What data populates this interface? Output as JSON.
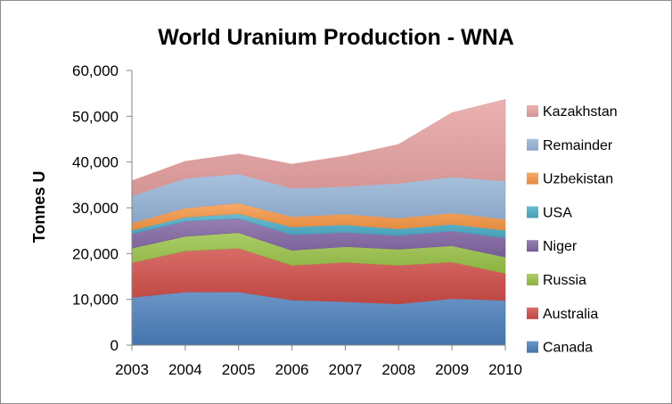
{
  "chart_data": {
    "type": "area",
    "stacked": true,
    "title": "World Uranium Production - WNA",
    "xlabel": "",
    "ylabel": "Tonnes U",
    "x": [
      "2003",
      "2004",
      "2005",
      "2006",
      "2007",
      "2008",
      "2009",
      "2010"
    ],
    "ylim": [
      0,
      60000
    ],
    "yticks": [
      "0",
      "10,000",
      "20,000",
      "30,000",
      "40,000",
      "50,000",
      "60,000"
    ],
    "grid": false,
    "legend_position": "right",
    "series": [
      {
        "name": "Canada",
        "color": "#4a7ebb",
        "values": [
          10450,
          11600,
          11630,
          9860,
          9480,
          9000,
          10170,
          9780
        ]
      },
      {
        "name": "Australia",
        "color": "#cf4c47",
        "values": [
          7570,
          8980,
          9520,
          7590,
          8610,
          8430,
          7980,
          5900
        ]
      },
      {
        "name": "Russia",
        "color": "#98c147",
        "values": [
          3150,
          3200,
          3430,
          3260,
          3410,
          3520,
          3560,
          3560
        ]
      },
      {
        "name": "Niger",
        "color": "#8064a2",
        "values": [
          3140,
          3280,
          3090,
          3430,
          3150,
          3030,
          3240,
          4200
        ]
      },
      {
        "name": "USA",
        "color": "#4bacc6",
        "values": [
          780,
          880,
          1040,
          1670,
          1650,
          1430,
          1450,
          1660
        ]
      },
      {
        "name": "Uzbekistan",
        "color": "#f79646",
        "values": [
          1600,
          2020,
          2300,
          2270,
          2320,
          2340,
          2430,
          2400
        ]
      },
      {
        "name": "Remainder",
        "color": "#95b3d7",
        "values": [
          5910,
          6470,
          6420,
          6180,
          6030,
          7580,
          7900,
          8360
        ]
      },
      {
        "name": "Kazakhstan",
        "color": "#e6a1a1",
        "values": [
          3300,
          3720,
          4360,
          5280,
          6640,
          8520,
          14020,
          17800
        ]
      }
    ]
  }
}
